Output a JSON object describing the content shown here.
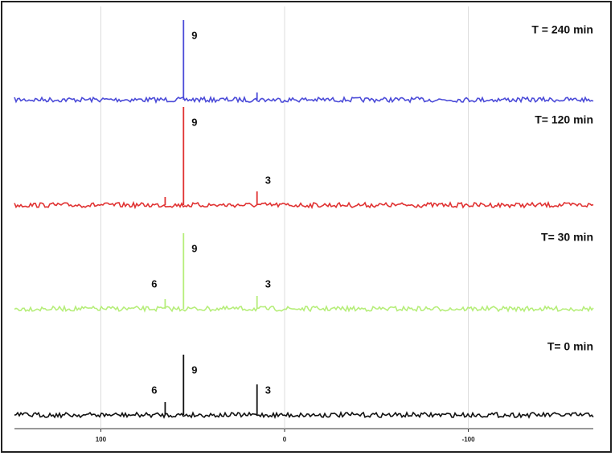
{
  "chart_data": {
    "type": "stacked-spectra",
    "xlim": [
      147,
      -168
    ],
    "xticks": [
      100,
      0,
      -100
    ],
    "grid": true,
    "series": [
      {
        "name": "T = 240 min",
        "color": "#4b4bd8",
        "peaks": [
          {
            "x": 55,
            "height": 99,
            "label": "9"
          },
          {
            "x": 15,
            "height": 9
          }
        ]
      },
      {
        "name": "T= 120 min",
        "color": "#e03232",
        "peaks": [
          {
            "x": 55,
            "height": 122,
            "label": "9"
          },
          {
            "x": 15,
            "height": 17,
            "label": "3"
          },
          {
            "x": 65,
            "height": 10
          }
        ]
      },
      {
        "name": "T= 30 min",
        "color": "#b6ee7a",
        "peaks": [
          {
            "x": 55,
            "height": 94,
            "label": "9"
          },
          {
            "x": 15,
            "height": 16,
            "label": "3"
          },
          {
            "x": 65,
            "height": 12,
            "label": "6"
          }
        ]
      },
      {
        "name": "T= 0 min",
        "color": "#111111",
        "peaks": [
          {
            "x": 55,
            "height": 75,
            "label": "9"
          },
          {
            "x": 15,
            "height": 38,
            "label": "3"
          },
          {
            "x": 65,
            "height": 16,
            "label": "6"
          }
        ]
      }
    ]
  }
}
